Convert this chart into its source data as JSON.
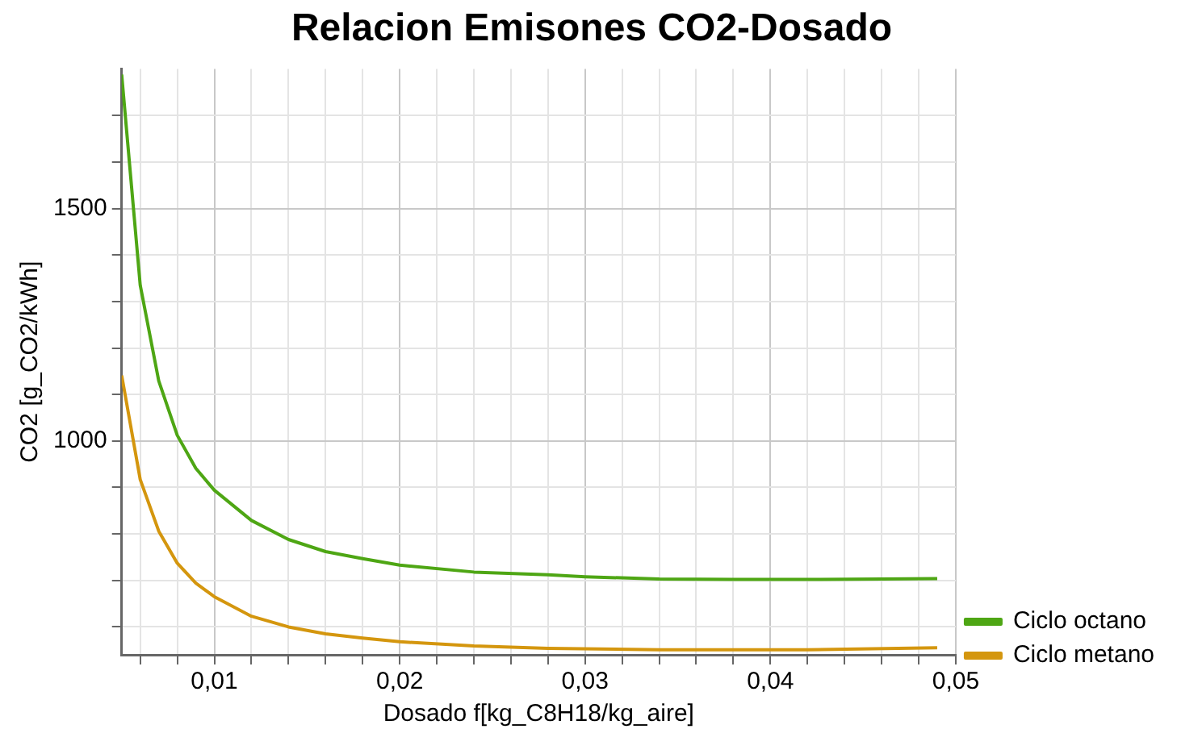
{
  "chart_data": {
    "type": "line",
    "title": "Relacion Emisones CO2-Dosado",
    "xlabel": "Dosado f[kg_C8H18/kg_aire]",
    "ylabel": "CO2 [g_CO2/kWh]",
    "series": [
      {
        "name": "Ciclo octano",
        "color": "#4ea614",
        "x": [
          0.005,
          0.006,
          0.007,
          0.008,
          0.009,
          0.01,
          0.012,
          0.014,
          0.016,
          0.018,
          0.02,
          0.024,
          0.028,
          0.03,
          0.034,
          0.038,
          0.042,
          0.046,
          0.049
        ],
        "values": [
          1788,
          1335,
          1129,
          1012,
          941,
          894,
          829,
          788,
          762,
          747,
          733,
          718,
          712,
          708,
          703,
          702,
          702,
          703,
          704
        ]
      },
      {
        "name": "Ciclo metano",
        "color": "#d4960e",
        "x": [
          0.005,
          0.006,
          0.007,
          0.008,
          0.009,
          0.01,
          0.012,
          0.014,
          0.016,
          0.018,
          0.02,
          0.024,
          0.028,
          0.034,
          0.042,
          0.049
        ],
        "values": [
          1141,
          917,
          806,
          737,
          694,
          665,
          623,
          600,
          585,
          576,
          568,
          559,
          554,
          551,
          551,
          555
        ]
      }
    ],
    "xlim": [
      0.005,
      0.05
    ],
    "xticks": [
      {
        "value": 0.006,
        "label": null
      },
      {
        "value": 0.008,
        "label": null
      },
      {
        "value": 0.01,
        "label": "0,01"
      },
      {
        "value": 0.012,
        "label": null
      },
      {
        "value": 0.014,
        "label": null
      },
      {
        "value": 0.016,
        "label": null
      },
      {
        "value": 0.018,
        "label": null
      },
      {
        "value": 0.02,
        "label": "0,02"
      },
      {
        "value": 0.022,
        "label": null
      },
      {
        "value": 0.024,
        "label": null
      },
      {
        "value": 0.026,
        "label": null
      },
      {
        "value": 0.028,
        "label": null
      },
      {
        "value": 0.03,
        "label": "0,03"
      },
      {
        "value": 0.032,
        "label": null
      },
      {
        "value": 0.034,
        "label": null
      },
      {
        "value": 0.036,
        "label": null
      },
      {
        "value": 0.038,
        "label": null
      },
      {
        "value": 0.04,
        "label": "0,04"
      },
      {
        "value": 0.042,
        "label": null
      },
      {
        "value": 0.044,
        "label": null
      },
      {
        "value": 0.046,
        "label": null
      },
      {
        "value": 0.048,
        "label": null
      },
      {
        "value": 0.05,
        "label": "0,05"
      }
    ],
    "ylim": [
      540,
      1800
    ],
    "yticks": [
      {
        "value": 600,
        "label": null
      },
      {
        "value": 700,
        "label": null
      },
      {
        "value": 800,
        "label": null
      },
      {
        "value": 900,
        "label": null
      },
      1000,
      {
        "value": 1100,
        "label": null
      },
      {
        "value": 1200,
        "label": null
      },
      {
        "value": 1300,
        "label": null
      },
      {
        "value": 1400,
        "label": null
      },
      1500,
      {
        "value": 1600,
        "label": null
      },
      {
        "value": 1700,
        "label": null
      }
    ],
    "grid": true,
    "legend": "bottom right",
    "marker": "none",
    "line_style": "solid"
  }
}
